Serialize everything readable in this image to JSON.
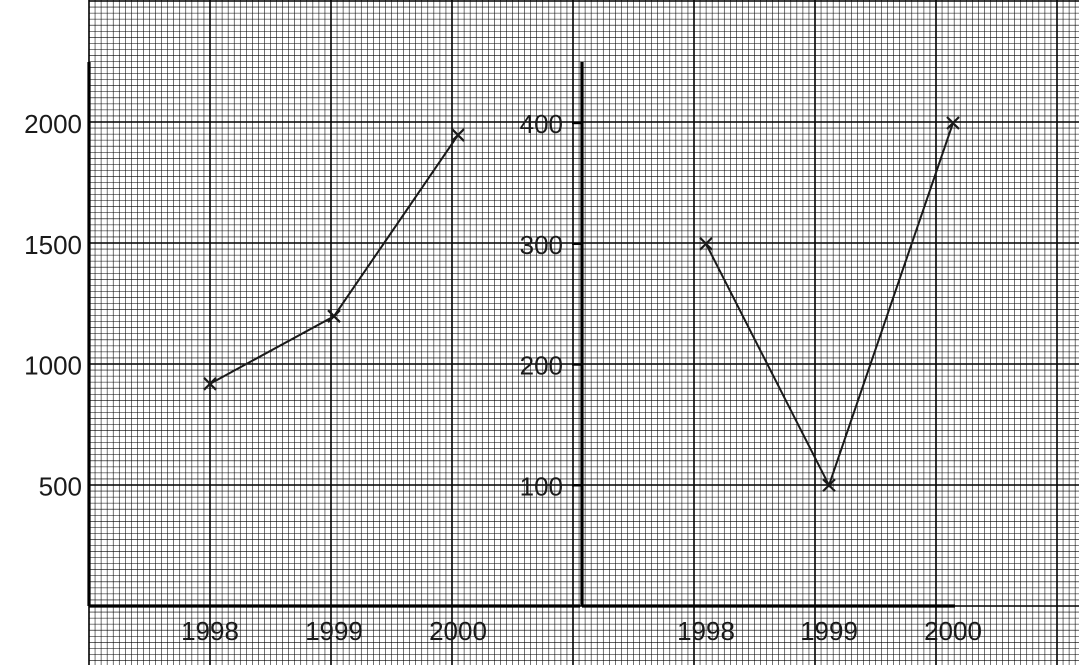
{
  "chart_data": [
    {
      "type": "line",
      "title": "",
      "xlabel": "",
      "ylabel": "",
      "categories": [
        "1998",
        "1999",
        "2000"
      ],
      "y_ticks": [
        "500",
        "1000",
        "1500",
        "2000"
      ],
      "ylim": [
        0,
        2000
      ],
      "grid": true,
      "marker": "x",
      "series": [
        {
          "values": [
            920,
            1200,
            1950
          ]
        }
      ]
    },
    {
      "type": "line",
      "title": "",
      "xlabel": "",
      "ylabel": "",
      "categories": [
        "1998",
        "1999",
        "2000"
      ],
      "y_ticks": [
        "100",
        "200",
        "300",
        "400"
      ],
      "ylim": [
        0,
        400
      ],
      "grid": true,
      "marker": "x",
      "series": [
        {
          "values": [
            300,
            100,
            400
          ]
        }
      ]
    }
  ],
  "colors": {
    "grid": "#000000",
    "line": "#1a1a1a",
    "background": "#ffffff"
  }
}
